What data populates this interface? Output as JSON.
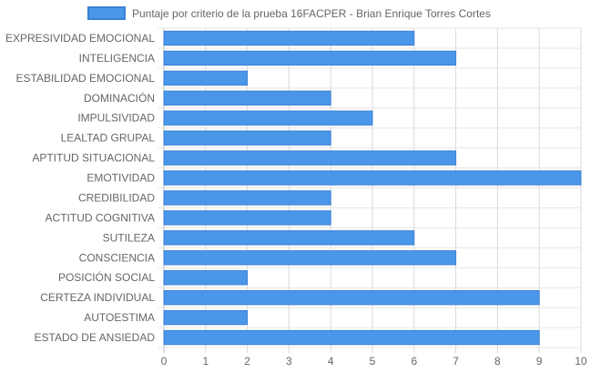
{
  "chart_data": {
    "type": "bar",
    "orientation": "horizontal",
    "categories": [
      "EXPRESIVIDAD EMOCIONAL",
      "INTELIGENCIA",
      "ESTABILIDAD EMOCIONAL",
      "DOMINACIÓN",
      "IMPULSIVIDAD",
      "LEALTAD GRUPAL",
      "APTITUD SITUACIONAL",
      "EMOTIVIDAD",
      "CREDIBILIDAD",
      "ACTITUD COGNITIVA",
      "SUTILEZA",
      "CONSCIENCIA",
      "POSICIÓN SOCIAL",
      "CERTEZA INDIVIDUAL",
      "AUTOESTIMA",
      "ESTADO DE ANSIEDAD"
    ],
    "series": [
      {
        "name": "Puntaje por criterio de la prueba 16FACPER - Brian Enrique Torres Cortes",
        "values": [
          6,
          7,
          2,
          4,
          5,
          4,
          7,
          10,
          4,
          4,
          6,
          7,
          2,
          9,
          2,
          9
        ],
        "color": "#4a97ea",
        "border_color": "#3b7fd4"
      }
    ],
    "xlim": [
      0,
      10
    ],
    "x_ticks": [
      "0",
      "1",
      "2",
      "3",
      "4",
      "5",
      "6",
      "7",
      "8",
      "9",
      "10"
    ],
    "grid": true,
    "legend_position": "top"
  }
}
